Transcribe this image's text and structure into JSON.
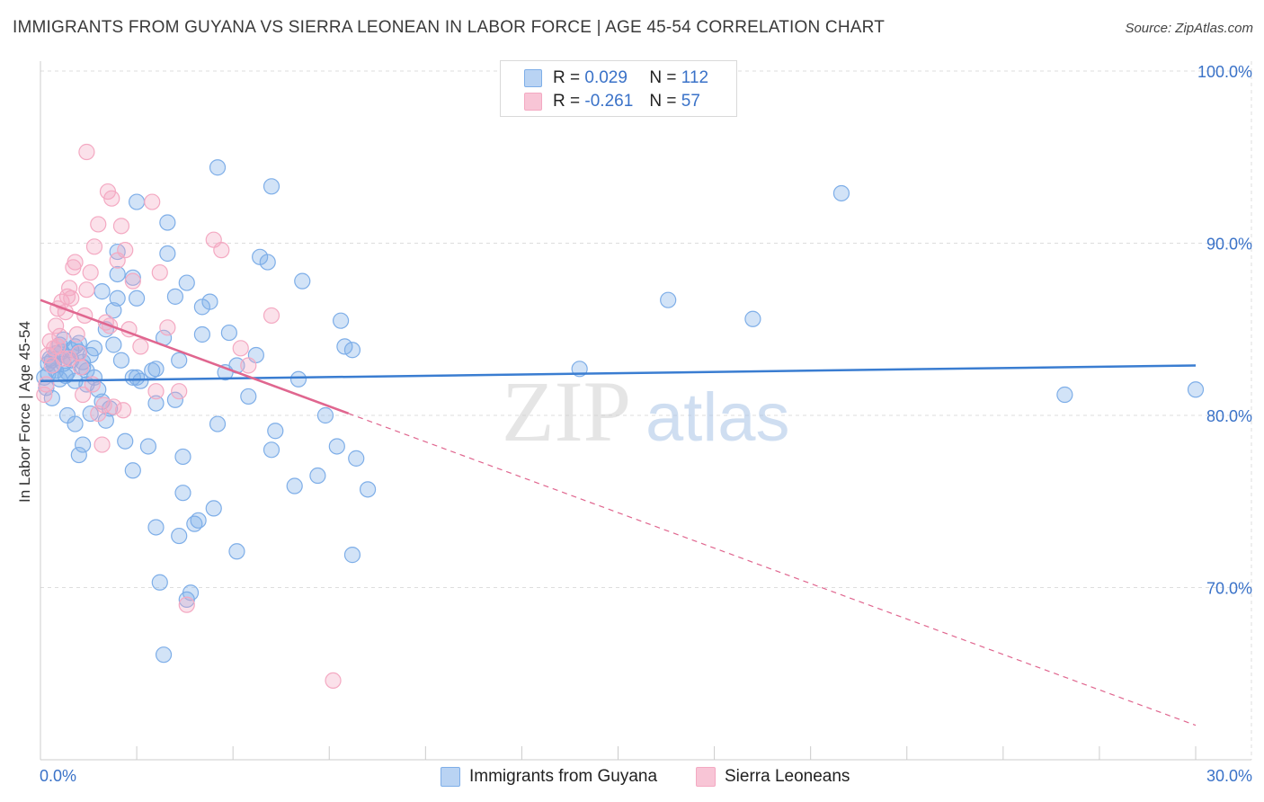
{
  "title": "IMMIGRANTS FROM GUYANA VS SIERRA LEONEAN IN LABOR FORCE | AGE 45-54 CORRELATION CHART",
  "source": "Source: ZipAtlas.com",
  "watermark": {
    "zip": "ZIP",
    "atlas": "atlas"
  },
  "legend": {
    "r_label": "R =",
    "n_label": "N =",
    "rows": [
      {
        "r": "0.029",
        "n": "112"
      },
      {
        "r": "-0.261",
        "n": "57"
      }
    ]
  },
  "chart_data": {
    "type": "scatter",
    "title": "IMMIGRANTS FROM GUYANA VS SIERRA LEONEAN IN LABOR FORCE | AGE 45-54 CORRELATION CHART",
    "xlabel": "",
    "ylabel": "In Labor Force | Age 45-54",
    "xlim": [
      0,
      30
    ],
    "ylim": [
      61.5,
      102
    ],
    "x_tick_labels": [
      "0.0%",
      "30.0%"
    ],
    "y_ticks": [
      70,
      80,
      90,
      100
    ],
    "y_tick_labels": [
      "70.0%",
      "80.0%",
      "90.0%",
      "100.0%"
    ],
    "grid": true,
    "legend_position": "top-center",
    "series": [
      {
        "name": "Immigrants from Guyana",
        "color": "#7eaee8",
        "line_color": "#3a7dd1",
        "r": 0.029,
        "n": 112,
        "trend": {
          "x0": 0,
          "y0": 82.0,
          "x1": 30,
          "y1": 82.9,
          "dashed_from": null
        },
        "points": [
          [
            0.2,
            82.4
          ],
          [
            0.3,
            83.2
          ],
          [
            0.4,
            83.6
          ],
          [
            0.5,
            84.1
          ],
          [
            0.6,
            83.0
          ],
          [
            0.7,
            82.5
          ],
          [
            0.8,
            83.8
          ],
          [
            0.9,
            82.0
          ],
          [
            1.0,
            84.2
          ],
          [
            1.1,
            83.1
          ],
          [
            1.2,
            82.6
          ],
          [
            1.3,
            83.5
          ],
          [
            1.4,
            82.2
          ],
          [
            1.5,
            81.5
          ],
          [
            1.6,
            80.8
          ],
          [
            0.3,
            81.0
          ],
          [
            0.5,
            82.1
          ],
          [
            0.7,
            83.4
          ],
          [
            0.9,
            84.0
          ],
          [
            1.1,
            82.8
          ],
          [
            0.2,
            83.0
          ],
          [
            0.4,
            82.6
          ],
          [
            0.6,
            84.4
          ],
          [
            0.8,
            83.2
          ],
          [
            1.0,
            83.7
          ],
          [
            1.2,
            81.8
          ],
          [
            1.4,
            83.9
          ],
          [
            0.1,
            82.2
          ],
          [
            0.15,
            81.6
          ],
          [
            0.25,
            83.3
          ],
          [
            0.7,
            80.0
          ],
          [
            0.9,
            79.5
          ],
          [
            1.1,
            78.3
          ],
          [
            1.0,
            77.7
          ],
          [
            1.3,
            80.1
          ],
          [
            1.8,
            80.4
          ],
          [
            1.7,
            79.7
          ],
          [
            2.2,
            78.5
          ],
          [
            2.4,
            76.8
          ],
          [
            2.8,
            78.2
          ],
          [
            2.5,
            82.2
          ],
          [
            2.6,
            82.0
          ],
          [
            2.9,
            82.6
          ],
          [
            3.0,
            80.7
          ],
          [
            3.5,
            80.9
          ],
          [
            3.7,
            77.6
          ],
          [
            3.6,
            83.2
          ],
          [
            3.2,
            84.5
          ],
          [
            4.2,
            84.7
          ],
          [
            4.9,
            84.8
          ],
          [
            4.8,
            82.5
          ],
          [
            5.1,
            82.9
          ],
          [
            5.4,
            81.1
          ],
          [
            5.6,
            83.5
          ],
          [
            4.6,
            79.5
          ],
          [
            6.1,
            79.1
          ],
          [
            6.0,
            78.0
          ],
          [
            6.6,
            75.9
          ],
          [
            7.2,
            76.5
          ],
          [
            7.4,
            80.0
          ],
          [
            7.7,
            78.2
          ],
          [
            8.2,
            77.5
          ],
          [
            8.5,
            75.7
          ],
          [
            7.9,
            84.0
          ],
          [
            8.1,
            83.8
          ],
          [
            7.8,
            85.5
          ],
          [
            6.7,
            82.1
          ],
          [
            6.8,
            87.8
          ],
          [
            5.7,
            89.2
          ],
          [
            5.9,
            88.9
          ],
          [
            4.6,
            94.4
          ],
          [
            6.0,
            93.3
          ],
          [
            4.4,
            86.6
          ],
          [
            4.2,
            86.3
          ],
          [
            3.8,
            87.7
          ],
          [
            3.5,
            86.9
          ],
          [
            3.3,
            91.2
          ],
          [
            3.3,
            89.4
          ],
          [
            2.4,
            88.0
          ],
          [
            2.5,
            86.8
          ],
          [
            2.5,
            92.4
          ],
          [
            2.0,
            89.5
          ],
          [
            2.0,
            88.2
          ],
          [
            2.0,
            86.8
          ],
          [
            1.6,
            87.2
          ],
          [
            1.9,
            86.1
          ],
          [
            1.7,
            85.0
          ],
          [
            1.9,
            84.1
          ],
          [
            2.1,
            83.2
          ],
          [
            2.4,
            82.2
          ],
          [
            3.0,
            82.7
          ],
          [
            3.0,
            73.5
          ],
          [
            3.6,
            73.0
          ],
          [
            4.0,
            73.7
          ],
          [
            4.1,
            73.9
          ],
          [
            4.5,
            74.6
          ],
          [
            3.7,
            75.5
          ],
          [
            5.1,
            72.1
          ],
          [
            8.1,
            71.9
          ],
          [
            3.1,
            70.3
          ],
          [
            3.9,
            69.7
          ],
          [
            3.8,
            69.3
          ],
          [
            3.2,
            66.1
          ],
          [
            14.0,
            82.7
          ],
          [
            16.3,
            86.7
          ],
          [
            18.5,
            85.6
          ],
          [
            20.8,
            92.9
          ],
          [
            26.6,
            81.2
          ],
          [
            30.0,
            81.5
          ],
          [
            0.35,
            82.9
          ],
          [
            0.55,
            83.7
          ],
          [
            0.65,
            82.3
          ]
        ]
      },
      {
        "name": "Sierra Leoneans",
        "color": "#f4a9c2",
        "line_color": "#e0668f",
        "r": -0.261,
        "n": 57,
        "trend": {
          "x0": 0,
          "y0": 86.7,
          "x1": 30,
          "y1": 62.0,
          "dashed_from": 8.0
        },
        "points": [
          [
            0.1,
            81.2
          ],
          [
            0.15,
            81.8
          ],
          [
            0.2,
            83.5
          ],
          [
            0.25,
            84.3
          ],
          [
            0.3,
            82.9
          ],
          [
            0.35,
            83.9
          ],
          [
            0.4,
            85.2
          ],
          [
            0.45,
            86.2
          ],
          [
            0.5,
            84.6
          ],
          [
            0.55,
            86.6
          ],
          [
            0.6,
            83.3
          ],
          [
            0.65,
            86.0
          ],
          [
            0.7,
            86.9
          ],
          [
            0.75,
            87.4
          ],
          [
            0.8,
            86.8
          ],
          [
            0.85,
            88.6
          ],
          [
            0.9,
            88.9
          ],
          [
            0.95,
            84.7
          ],
          [
            1.0,
            83.6
          ],
          [
            1.05,
            82.8
          ],
          [
            1.1,
            81.2
          ],
          [
            1.15,
            85.8
          ],
          [
            1.2,
            87.3
          ],
          [
            1.3,
            88.3
          ],
          [
            1.4,
            89.8
          ],
          [
            1.5,
            80.1
          ],
          [
            1.6,
            78.3
          ],
          [
            1.7,
            85.4
          ],
          [
            1.8,
            85.2
          ],
          [
            1.9,
            80.5
          ],
          [
            2.0,
            89.0
          ],
          [
            2.1,
            91.0
          ],
          [
            2.2,
            89.6
          ],
          [
            2.3,
            85.0
          ],
          [
            2.4,
            87.8
          ],
          [
            2.6,
            84.0
          ],
          [
            2.9,
            92.4
          ],
          [
            3.0,
            81.4
          ],
          [
            3.1,
            88.3
          ],
          [
            3.3,
            85.1
          ],
          [
            4.5,
            90.2
          ],
          [
            4.7,
            89.6
          ],
          [
            5.2,
            83.9
          ],
          [
            5.4,
            82.9
          ],
          [
            6.0,
            85.8
          ],
          [
            3.6,
            81.4
          ],
          [
            3.8,
            69.0
          ],
          [
            7.6,
            64.6
          ],
          [
            1.2,
            95.3
          ],
          [
            1.75,
            93.0
          ],
          [
            1.85,
            92.6
          ],
          [
            1.5,
            91.1
          ],
          [
            0.45,
            84.0
          ],
          [
            0.75,
            83.3
          ],
          [
            1.35,
            81.8
          ],
          [
            1.65,
            80.6
          ],
          [
            2.15,
            80.3
          ]
        ]
      }
    ]
  },
  "bottom_legend": [
    "Immigrants from Guyana",
    "Sierra Leoneans"
  ]
}
